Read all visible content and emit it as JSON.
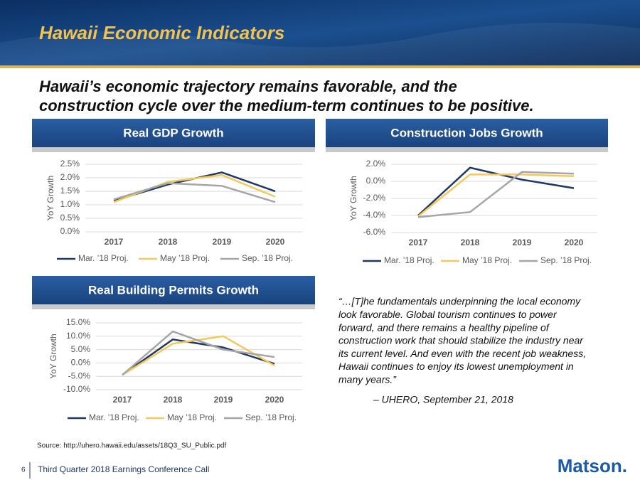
{
  "header": {
    "title": "Hawaii Economic Indicators"
  },
  "subtitle": {
    "lines": [
      "Hawaii’s economic trajectory remains favorable, and the",
      "construction cycle over the medium-term continues to be positive."
    ]
  },
  "chart_data": [
    {
      "type": "line",
      "title": "Real GDP Growth",
      "y_label": "YoY Growth",
      "categories": [
        "2017",
        "2018",
        "2019",
        "2020"
      ],
      "series": [
        {
          "name": "Mar. ’18 Proj.",
          "color": "#1f3864",
          "values": [
            1.15,
            1.75,
            2.2,
            1.5
          ]
        },
        {
          "name": "May ’18 Proj.",
          "color": "#f5c85a",
          "values": [
            1.1,
            1.85,
            2.1,
            1.3
          ]
        },
        {
          "name": "Sep. ’18 Proj.",
          "color": "#a6a6a6",
          "values": [
            1.2,
            1.8,
            1.7,
            1.1
          ]
        }
      ],
      "ylim": [
        0,
        2.5
      ],
      "yticks": [
        {
          "value": 0,
          "label": "0.0%"
        },
        {
          "value": 0.5,
          "label": "0.5%"
        },
        {
          "value": 1,
          "label": "1.0%"
        },
        {
          "value": 1.5,
          "label": "1.5%"
        },
        {
          "value": 2,
          "label": "2.0%"
        },
        {
          "value": 2.5,
          "label": "2.5%"
        }
      ],
      "grid": true,
      "legend": "bottom"
    },
    {
      "type": "line",
      "title": "Construction Jobs Growth",
      "y_label": "YoY Growth",
      "categories": [
        "2017",
        "2018",
        "2019",
        "2020"
      ],
      "series": [
        {
          "name": "Mar. ’18 Proj.",
          "color": "#1f3864",
          "values": [
            -4.0,
            1.6,
            0.2,
            -0.8
          ]
        },
        {
          "name": "May ’18 Proj.",
          "color": "#f5c85a",
          "values": [
            -4.1,
            0.8,
            0.8,
            0.6
          ]
        },
        {
          "name": "Sep. ’18 Proj.",
          "color": "#a6a6a6",
          "values": [
            -4.2,
            -3.6,
            1.1,
            0.9
          ]
        }
      ],
      "ylim": [
        -6,
        2
      ],
      "yticks": [
        {
          "value": -6,
          "label": "-6.0%"
        },
        {
          "value": -4,
          "label": "-4.0%"
        },
        {
          "value": -2,
          "label": "-2.0%"
        },
        {
          "value": 0,
          "label": "0.0%"
        },
        {
          "value": 2,
          "label": "2.0%"
        }
      ],
      "grid": true,
      "legend": "bottom"
    },
    {
      "type": "line",
      "title": "Real Building Permits Growth",
      "y_label": "YoY Growth",
      "categories": [
        "2017",
        "2018",
        "2019",
        "2020"
      ],
      "series": [
        {
          "name": "Mar. ’18 Proj.",
          "color": "#1f3864",
          "values": [
            -4.5,
            8.8,
            5.8,
            -0.3
          ]
        },
        {
          "name": "May ’18 Proj.",
          "color": "#f5c85a",
          "values": [
            -4.5,
            7.2,
            10.0,
            -1.0
          ]
        },
        {
          "name": "Sep. ’18 Proj.",
          "color": "#a6a6a6",
          "values": [
            -4.5,
            11.8,
            5.0,
            2.2
          ]
        }
      ],
      "ylim": [
        -10,
        15
      ],
      "yticks": [
        {
          "value": -10,
          "label": "-10.0%"
        },
        {
          "value": -5,
          "label": "-5.0%"
        },
        {
          "value": 0,
          "label": "0.0%"
        },
        {
          "value": 5,
          "label": "5.0%"
        },
        {
          "value": 10,
          "label": "10.0%"
        },
        {
          "value": 15,
          "label": "15.0%"
        }
      ],
      "grid": true,
      "legend": "bottom"
    }
  ],
  "quote": {
    "lines": [
      "“…[T]he fundamentals underpinning the local economy",
      "look favorable. Global tourism continues to power",
      "forward, and there remains a healthy pipeline of",
      "construction work that should stabilize the industry near",
      "its current level. And even with the recent job weakness,",
      "Hawaii continues to enjoy its lowest unemployment in",
      "many years.”"
    ],
    "attribution": "– UHERO, September 21, 2018"
  },
  "source": "Source:  http://uhero.hawaii.edu/assets/18Q3_SU_Public.pdf",
  "footer": {
    "page": "6",
    "text": "Third Quarter 2018 Earnings Conference Call",
    "logo": "Matson."
  }
}
